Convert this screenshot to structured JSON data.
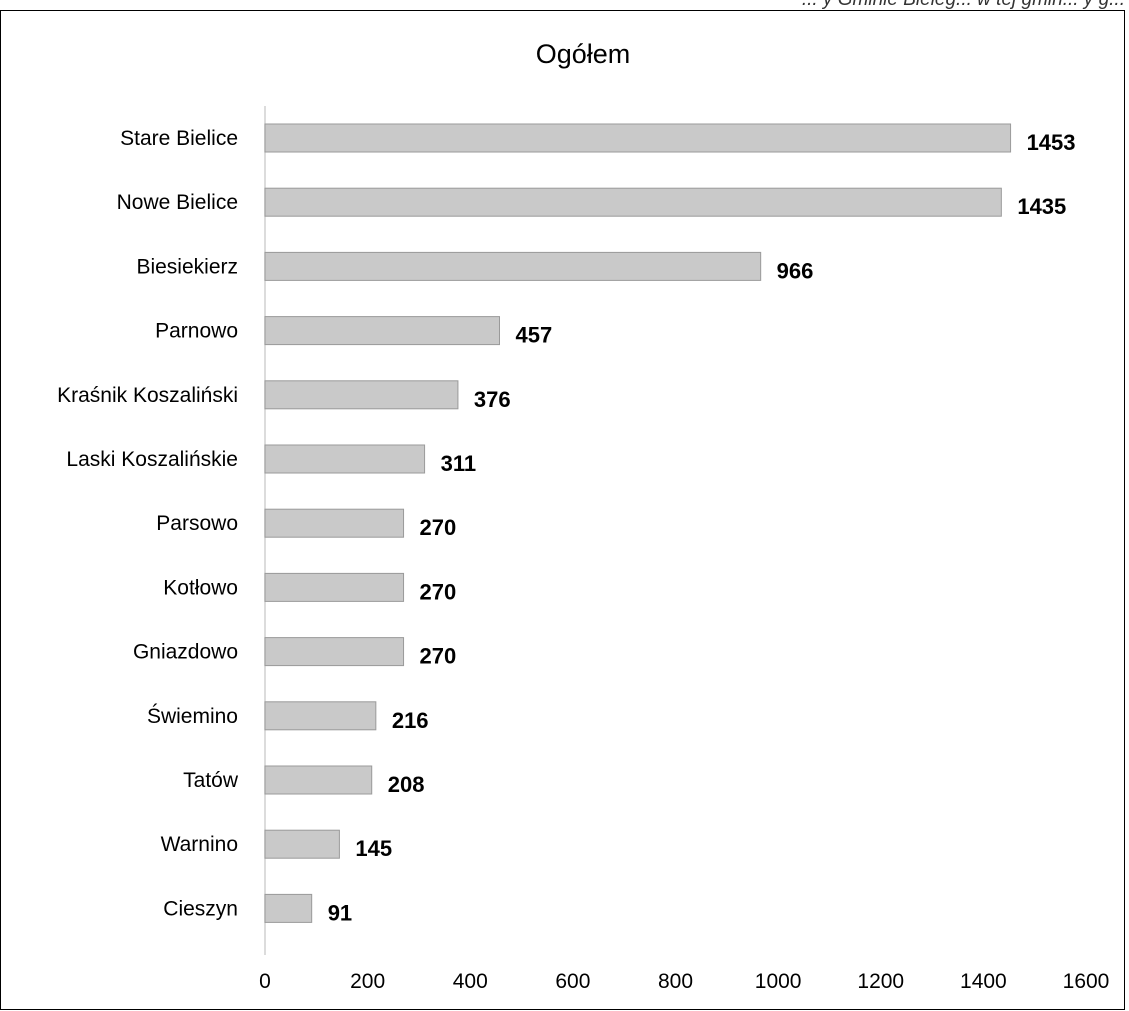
{
  "page_header_text": "... y Gminie Bieleg... w tej gmin... y g...",
  "chart_data": {
    "type": "bar",
    "orientation": "horizontal",
    "title": "Ogółem",
    "categories": [
      "Stare Bielice",
      "Nowe Bielice",
      "Biesiekierz",
      "Parnowo",
      "Kraśnik Koszaliński",
      "Laski Koszalińskie",
      "Parsowo",
      "Kotłowo",
      "Gniazdowo",
      "Świemino",
      "Tatów",
      "Warnino",
      "Cieszyn"
    ],
    "values": [
      1453,
      1435,
      966,
      457,
      376,
      311,
      270,
      270,
      270,
      216,
      208,
      145,
      91
    ],
    "xlim": [
      0,
      1600
    ],
    "x_ticks": [
      0,
      200,
      400,
      600,
      800,
      1000,
      1200,
      1400,
      1600
    ],
    "data_labels": true,
    "grid": false,
    "legend": "none",
    "colors": {
      "bar_fill": "#c9c9c9",
      "bar_stroke": "#9a9a9a",
      "axis_line": "#d0d0d0",
      "text": "#000000"
    }
  }
}
